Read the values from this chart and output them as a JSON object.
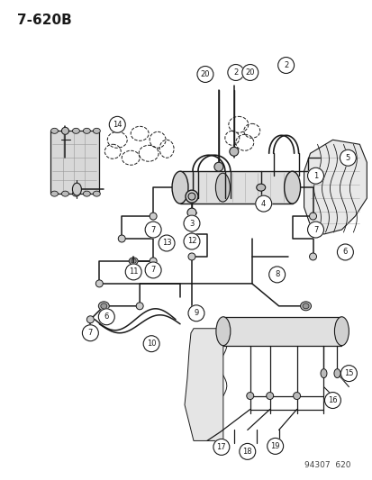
{
  "title": "7-620B",
  "footer": "94307  620",
  "bg_color": "#ffffff",
  "line_color": "#1a1a1a",
  "title_fontsize": 11,
  "footer_fontsize": 6.5,
  "callout_r": 0.018,
  "callout_fontsize": 6.0,
  "lw_pipe": 1.1,
  "lw_thin": 0.6,
  "gray_light": "#cccccc",
  "gray_mid": "#aaaaaa",
  "gray_dark": "#888888"
}
